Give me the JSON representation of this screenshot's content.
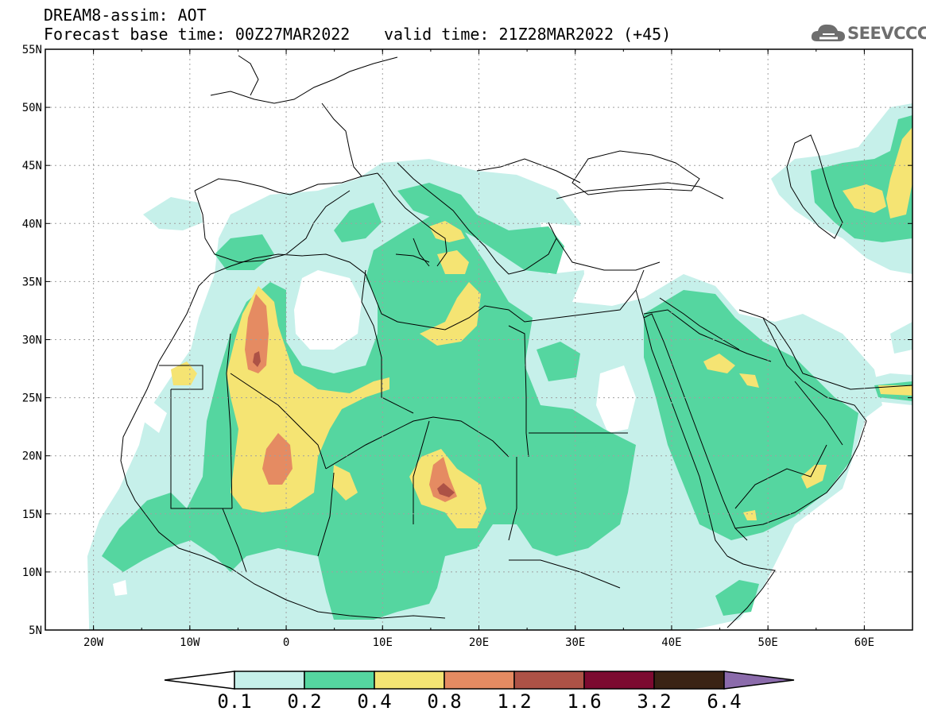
{
  "header": {
    "title_line1": "DREAM8-assim: AOT",
    "base_time": "Forecast base time: 00Z27MAR2022",
    "valid_time": "valid time: 21Z28MAR2022 (+45)",
    "logo_text": "SEEVCCC",
    "logo_icon": "cloud-logo-icon"
  },
  "map": {
    "lon_range": [
      -25,
      65
    ],
    "lat_range": [
      5,
      55
    ],
    "lat_ticks": [
      {
        "value": 55,
        "label": "55N"
      },
      {
        "value": 50,
        "label": "50N"
      },
      {
        "value": 45,
        "label": "45N"
      },
      {
        "value": 40,
        "label": "40N"
      },
      {
        "value": 35,
        "label": "35N"
      },
      {
        "value": 30,
        "label": "30N"
      },
      {
        "value": 25,
        "label": "25N"
      },
      {
        "value": 20,
        "label": "20N"
      },
      {
        "value": 15,
        "label": "15N"
      },
      {
        "value": 10,
        "label": "10N"
      },
      {
        "value": 5,
        "label": "5N"
      }
    ],
    "lon_ticks": [
      {
        "value": -20,
        "label": "20W"
      },
      {
        "value": -10,
        "label": "10W"
      },
      {
        "value": 0,
        "label": "0"
      },
      {
        "value": 10,
        "label": "10E"
      },
      {
        "value": 20,
        "label": "20E"
      },
      {
        "value": 30,
        "label": "30E"
      },
      {
        "value": 40,
        "label": "40E"
      },
      {
        "value": 50,
        "label": "50E"
      },
      {
        "value": 60,
        "label": "60E"
      }
    ],
    "grid": true
  },
  "colorbar": {
    "labels": [
      "0.1",
      "0.2",
      "0.4",
      "0.8",
      "1.2",
      "1.6",
      "3.2",
      "6.4"
    ],
    "colors": [
      "#c6f0ea",
      "#55d6a0",
      "#f5e473",
      "#e58b62",
      "#ad5246",
      "#7c0a30",
      "#3a2314",
      "#8b6bab"
    ],
    "under_color": "#ffffff",
    "over_color": "#8b6bab"
  },
  "layers": {
    "c01": "#c6f0ea",
    "c02": "#55d6a0",
    "c04": "#f5e473",
    "c08": "#e58b62",
    "c12": "#ad5246",
    "c16": "#7c0a30"
  }
}
